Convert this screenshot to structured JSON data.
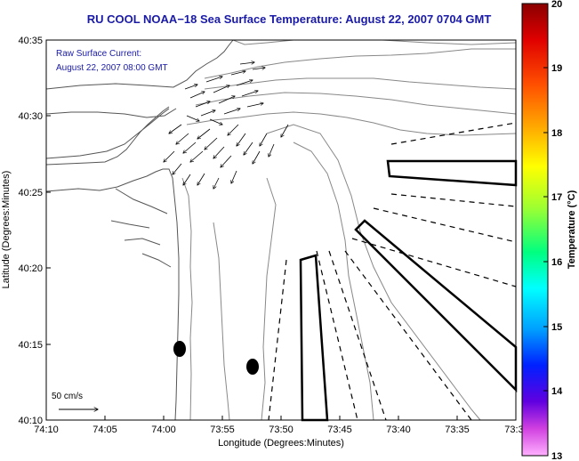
{
  "title": "RU COOL  NOAA−18  Sea Surface Temperature:  August 22, 2007 0704 GMT",
  "annotation": {
    "line1": "Raw Surface Current:",
    "line2": "August 22, 2007 08:00 GMT"
  },
  "scale_label": "50 cm/s",
  "axes": {
    "xlabel": "Longitude (Degrees:Minutes)",
    "ylabel": "Latitude (Degrees:Minutes)",
    "x_ticks": [
      "74:10",
      "74:05",
      "74:00",
      "73:55",
      "73:50",
      "73:45",
      "73:40",
      "73:35",
      "73:3"
    ],
    "y_ticks": [
      "40:35",
      "40:30",
      "40:25",
      "40:20",
      "40:15",
      "40:10"
    ]
  },
  "colorbar": {
    "label": "Temperature (°C)",
    "ticks": [
      "20",
      "19",
      "18",
      "17",
      "16",
      "15",
      "14",
      "13"
    ],
    "min": 13,
    "max": 20
  },
  "colors": {
    "title": "#1a1aa8",
    "annotation": "#1a1aa8",
    "contour": "#888888",
    "coast": "#555555"
  }
}
